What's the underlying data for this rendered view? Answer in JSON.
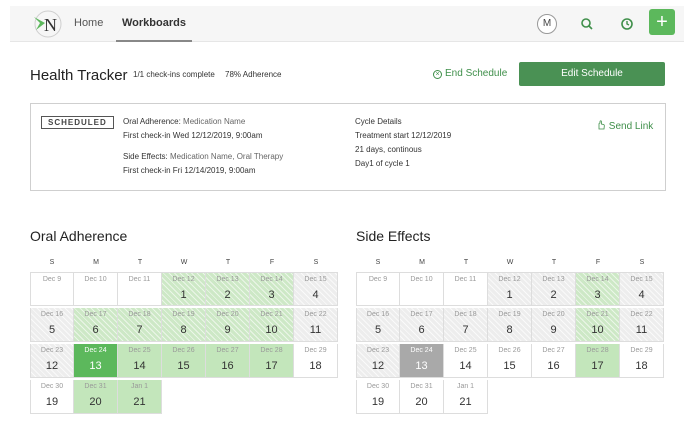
{
  "nav": {
    "home": "Home",
    "workboards": "Workboards",
    "avatar": "M",
    "plus": "+"
  },
  "header": {
    "title": "Health Tracker",
    "checkins": "1/1 check-ins complete",
    "adherence": "78% Adherence",
    "end_schedule": "End Schedule",
    "edit_schedule": "Edit Schedule"
  },
  "schedule": {
    "badge": "SCHEDULED",
    "oral_label": "Oral Adherence:",
    "oral_value": "Medication Name",
    "oral_first": "First check-in Wed 12/12/2019, 9:00am",
    "side_label": "Side Effects:",
    "side_value": "Medication Name, Oral Therapy",
    "side_first": "First check-in Fri 12/14/2019, 9:00am",
    "cycle_title": "Cycle Details",
    "cycle_start": "Treatment start 12/12/2019",
    "cycle_days": "21 days, continous",
    "cycle_day": "Day1 of cycle 1",
    "send_link": "Send Link"
  },
  "weekdays": [
    "S",
    "M",
    "T",
    "W",
    "T",
    "F",
    "S"
  ],
  "oral_calendar": {
    "title": "Oral Adherence",
    "cells": [
      {
        "d": "Dec 9",
        "n": "",
        "s": "white"
      },
      {
        "d": "Dec 10",
        "n": "",
        "s": "white"
      },
      {
        "d": "Dec 11",
        "n": "",
        "s": "white"
      },
      {
        "d": "Dec 12",
        "n": "1",
        "s": "hatch-green"
      },
      {
        "d": "Dec 13",
        "n": "2",
        "s": "hatch-green"
      },
      {
        "d": "Dec 14",
        "n": "3",
        "s": "hatch-green"
      },
      {
        "d": "Dec 15",
        "n": "4",
        "s": "hatch"
      },
      {
        "d": "Dec 16",
        "n": "5",
        "s": "hatch"
      },
      {
        "d": "Dec 17",
        "n": "6",
        "s": "hatch-green"
      },
      {
        "d": "Dec 18",
        "n": "7",
        "s": "hatch-green"
      },
      {
        "d": "Dec 19",
        "n": "8",
        "s": "hatch-green"
      },
      {
        "d": "Dec 20",
        "n": "9",
        "s": "hatch-green"
      },
      {
        "d": "Dec 21",
        "n": "10",
        "s": "hatch-green"
      },
      {
        "d": "Dec 22",
        "n": "11",
        "s": "hatch"
      },
      {
        "d": "Dec 23",
        "n": "12",
        "s": "hatch"
      },
      {
        "d": "Dec 24",
        "n": "13",
        "s": "dark-green"
      },
      {
        "d": "Dec 25",
        "n": "14",
        "s": "green"
      },
      {
        "d": "Dec 26",
        "n": "15",
        "s": "green"
      },
      {
        "d": "Dec 27",
        "n": "16",
        "s": "green"
      },
      {
        "d": "Dec 28",
        "n": "17",
        "s": "green"
      },
      {
        "d": "Dec 29",
        "n": "18",
        "s": "white"
      },
      {
        "d": "Dec 30",
        "n": "19",
        "s": "white"
      },
      {
        "d": "Dec 31",
        "n": "20",
        "s": "green"
      },
      {
        "d": "Jan 1",
        "n": "21",
        "s": "green"
      }
    ]
  },
  "side_calendar": {
    "title": "Side Effects",
    "cells": [
      {
        "d": "Dec 9",
        "n": "",
        "s": "white"
      },
      {
        "d": "Dec 10",
        "n": "",
        "s": "white"
      },
      {
        "d": "Dec 11",
        "n": "",
        "s": "white"
      },
      {
        "d": "Dec 12",
        "n": "1",
        "s": "hatch"
      },
      {
        "d": "Dec 13",
        "n": "2",
        "s": "hatch"
      },
      {
        "d": "Dec 14",
        "n": "3",
        "s": "hatch-green"
      },
      {
        "d": "Dec 15",
        "n": "4",
        "s": "hatch"
      },
      {
        "d": "Dec 16",
        "n": "5",
        "s": "hatch"
      },
      {
        "d": "Dec 17",
        "n": "6",
        "s": "hatch"
      },
      {
        "d": "Dec 18",
        "n": "7",
        "s": "hatch"
      },
      {
        "d": "Dec 19",
        "n": "8",
        "s": "hatch"
      },
      {
        "d": "Dec 20",
        "n": "9",
        "s": "hatch"
      },
      {
        "d": "Dec 21",
        "n": "10",
        "s": "hatch-green"
      },
      {
        "d": "Dec 22",
        "n": "11",
        "s": "hatch"
      },
      {
        "d": "Dec 23",
        "n": "12",
        "s": "hatch"
      },
      {
        "d": "Dec 24",
        "n": "13",
        "s": "gray"
      },
      {
        "d": "Dec 25",
        "n": "14",
        "s": "white"
      },
      {
        "d": "Dec 26",
        "n": "15",
        "s": "white"
      },
      {
        "d": "Dec 27",
        "n": "16",
        "s": "white"
      },
      {
        "d": "Dec 28",
        "n": "17",
        "s": "green"
      },
      {
        "d": "Dec 29",
        "n": "18",
        "s": "white"
      },
      {
        "d": "Dec 30",
        "n": "19",
        "s": "white"
      },
      {
        "d": "Dec 31",
        "n": "20",
        "s": "white"
      },
      {
        "d": "Jan 1",
        "n": "21",
        "s": "white"
      }
    ]
  },
  "colors": {
    "accent": "#4a9154",
    "complete": "#5cb85c",
    "complete_light": "#c3e6bb",
    "missed": "#a9a9a9"
  }
}
